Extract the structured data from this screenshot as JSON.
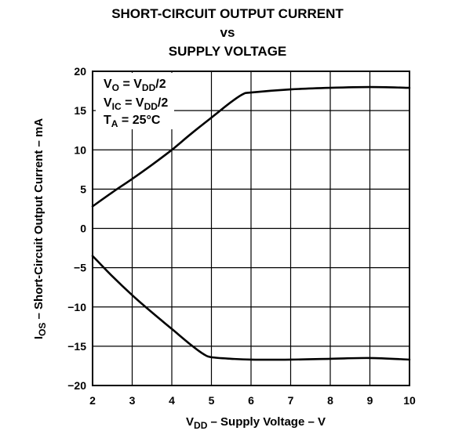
{
  "chart_data": {
    "type": "line",
    "title_lines": [
      "SHORT-CIRCUIT OUTPUT CURRENT",
      "vs",
      "SUPPLY VOLTAGE"
    ],
    "xlabel": {
      "main": "V",
      "sub": "DD",
      "rest": " – Supply Voltage – V"
    },
    "ylabel": {
      "main": "I",
      "sub": "OS",
      "rest": " – Short-Circuit Output Current – mA"
    },
    "xlim": [
      2,
      10
    ],
    "ylim": [
      -20,
      20
    ],
    "xticks": [
      2,
      3,
      4,
      5,
      6,
      7,
      8,
      9,
      10
    ],
    "yticks": [
      20,
      15,
      10,
      5,
      0,
      -5,
      -10,
      -15,
      -20
    ],
    "ytick_labels": [
      "20",
      "15",
      "10",
      "5",
      "0",
      "−5",
      "−10",
      "−15",
      "−20"
    ],
    "grid": true,
    "conditions": [
      {
        "a": "V",
        "a_sub": "O",
        "b": " = V",
        "b_sub": "DD",
        "c": "/2"
      },
      {
        "a": "V",
        "a_sub": "IC",
        "b": " = V",
        "b_sub": "DD",
        "c": "/2"
      },
      {
        "a": "T",
        "a_sub": "A",
        "b": " = 25°C",
        "b_sub": "",
        "c": ""
      }
    ],
    "series": [
      {
        "x": [
          2.0,
          2.5,
          3.0,
          3.5,
          4.0,
          4.5,
          5.0,
          5.5,
          5.8,
          6.0,
          7.0,
          8.0,
          9.0,
          10.0
        ],
        "values": [
          2.8,
          4.6,
          6.3,
          8.1,
          10.0,
          12.1,
          14.1,
          16.1,
          17.1,
          17.3,
          17.7,
          17.9,
          18.0,
          17.9
        ]
      },
      {
        "x": [
          2.0,
          2.5,
          3.0,
          3.5,
          4.0,
          4.5,
          4.8,
          5.0,
          5.5,
          6.0,
          7.0,
          8.0,
          9.0,
          10.0
        ],
        "values": [
          -3.5,
          -6.1,
          -8.5,
          -10.7,
          -12.8,
          -14.9,
          -16.0,
          -16.4,
          -16.6,
          -16.7,
          -16.7,
          -16.6,
          -16.5,
          -16.7
        ]
      }
    ]
  }
}
